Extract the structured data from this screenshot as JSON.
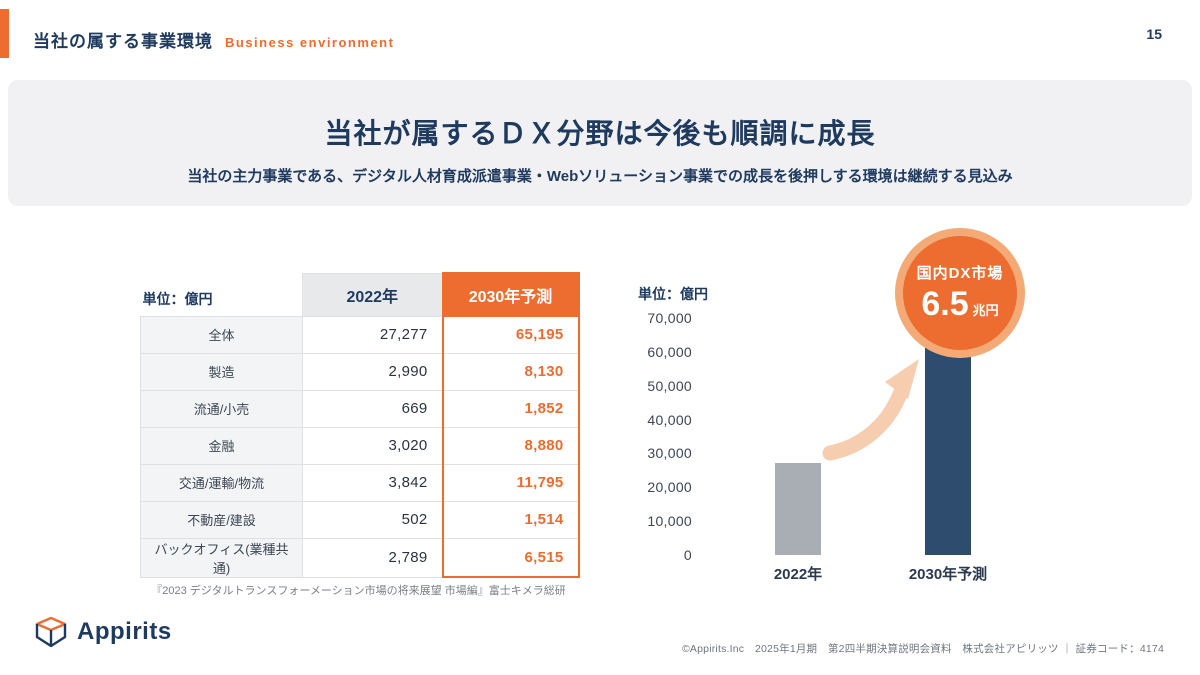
{
  "page": {
    "number": "15"
  },
  "header": {
    "title_ja": "当社の属する事業環境",
    "title_en": "Business environment"
  },
  "banner": {
    "title": "当社が属するＤＸ分野は今後も順調に成長",
    "subtitle": "当社の主力事業である、デジタル人材育成派遣事業・Webソリューション事業での成長を後押しする環境は継続する見込み"
  },
  "table": {
    "unit_label": "単位：億円",
    "col_2022": "2022年",
    "col_2030": "2030年予測",
    "rows": [
      {
        "label": "全体",
        "y2022": "27,277",
        "y2030": "65,195"
      },
      {
        "label": "製造",
        "y2022": "2,990",
        "y2030": "8,130"
      },
      {
        "label": "流通/小売",
        "y2022": "669",
        "y2030": "1,852"
      },
      {
        "label": "金融",
        "y2022": "3,020",
        "y2030": "8,880"
      },
      {
        "label": "交通/運輸/物流",
        "y2022": "3,842",
        "y2030": "11,795"
      },
      {
        "label": "不動産/建設",
        "y2022": "502",
        "y2030": "1,514"
      },
      {
        "label": "バックオフィス(業種共通)",
        "y2022": "2,789",
        "y2030": "6,515"
      }
    ],
    "source": "『2023 デジタルトランスフォーメーション市場の将来展望 市場編』富士キメラ総研"
  },
  "chart_data": {
    "type": "bar",
    "title": "国内DX市場",
    "unit_label": "単位：億円",
    "categories": [
      "2022年",
      "2030年予測"
    ],
    "values": [
      27277,
      65195
    ],
    "colors": [
      "#a9aeb4",
      "#2e4d6e"
    ],
    "ylim": [
      0,
      70000
    ],
    "yticks": [
      70000,
      60000,
      50000,
      40000,
      30000,
      20000,
      10000,
      0
    ],
    "ytick_labels": [
      "70,000",
      "60,000",
      "50,000",
      "40,000",
      "30,000",
      "20,000",
      "10,000",
      "0"
    ],
    "grid": false,
    "legend": false,
    "badge": {
      "label": "国内DX市場",
      "value": "6.5",
      "unit": "兆円"
    }
  },
  "footer": {
    "logo_text": "Appirits",
    "copyright": "©Appirits.Inc　2025年1月期　第2四半期決算説明会資料　株式会社アピリッツ ｜ 証券コード：4174"
  },
  "colors": {
    "accent_orange": "#ed6c30",
    "navy": "#1e3a5f",
    "bar_gray": "#a9aeb4",
    "bar_navy": "#2e4d6e"
  }
}
